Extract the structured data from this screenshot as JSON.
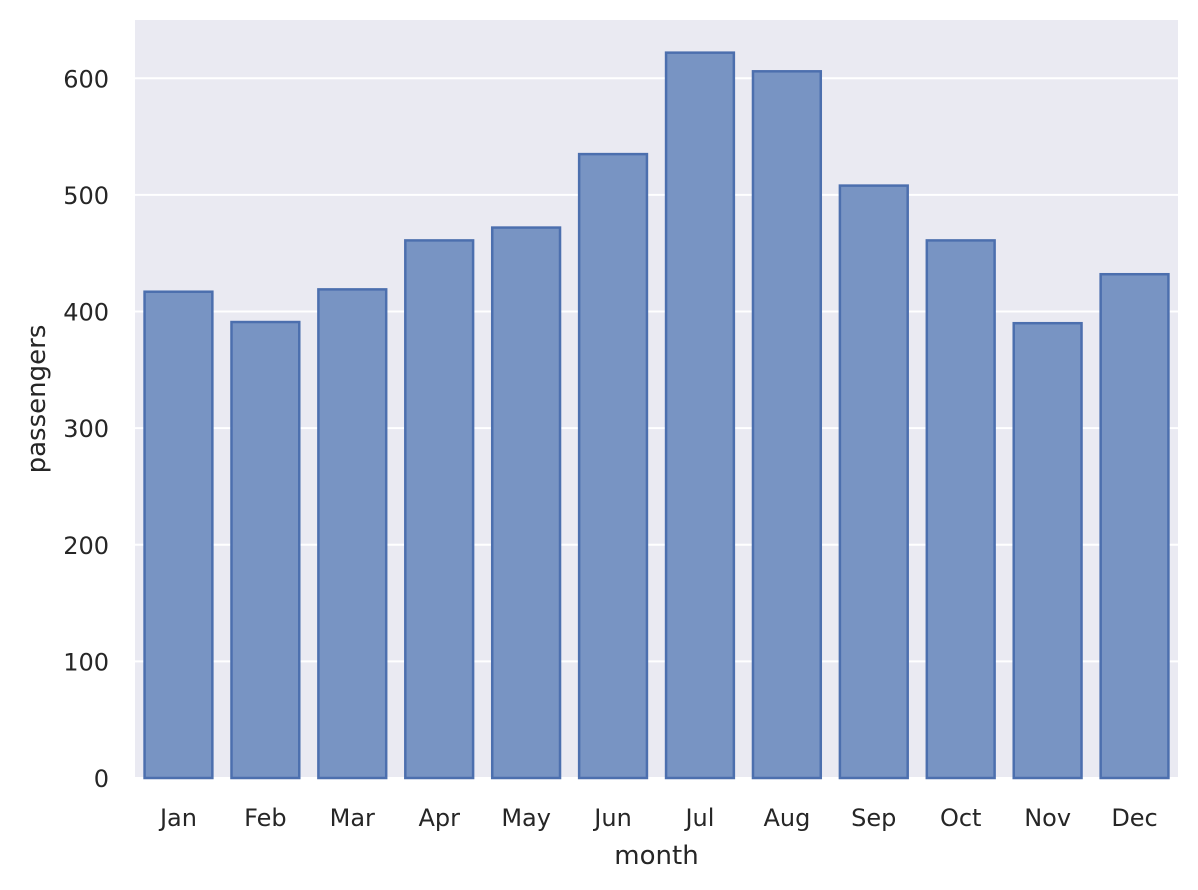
{
  "chart_data": {
    "type": "bar",
    "title": "",
    "xlabel": "month",
    "ylabel": "passengers",
    "categories": [
      "Jan",
      "Feb",
      "Mar",
      "Apr",
      "May",
      "Jun",
      "Jul",
      "Aug",
      "Sep",
      "Oct",
      "Nov",
      "Dec"
    ],
    "values": [
      417,
      391,
      419,
      461,
      472,
      535,
      622,
      606,
      508,
      461,
      390,
      432
    ],
    "ylim": [
      0,
      650
    ],
    "yticks": [
      0,
      100,
      200,
      300,
      400,
      500,
      600
    ],
    "grid": true,
    "legend": "none",
    "colors": {
      "background": "#eaeaf2",
      "grid": "#ffffff",
      "bar_fill": "#7894c3",
      "bar_edge": "#4c6fae"
    }
  }
}
